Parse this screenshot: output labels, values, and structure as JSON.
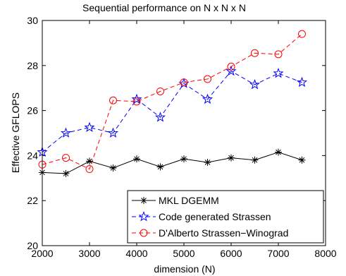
{
  "chart_data": {
    "type": "line",
    "title": "Sequential performance on N x N x N",
    "xlabel": "dimension (N)",
    "ylabel": "Effective GFLOPS",
    "xlim": [
      2000,
      8000
    ],
    "ylim": [
      20,
      30
    ],
    "xticks": [
      2000,
      3000,
      4000,
      5000,
      6000,
      7000,
      8000
    ],
    "yticks": [
      20,
      22,
      24,
      26,
      28,
      30
    ],
    "grid": false,
    "legend_position": "bottom-right",
    "x": [
      2000,
      2500,
      3000,
      3500,
      4000,
      4500,
      5000,
      5500,
      6000,
      6500,
      7000,
      7500
    ],
    "series": [
      {
        "name": "MKL DGEMM",
        "color": "#000000",
        "line_style": "solid",
        "marker": "asterisk",
        "values": [
          23.25,
          23.2,
          23.75,
          23.45,
          23.85,
          23.5,
          23.85,
          23.7,
          23.9,
          23.8,
          24.15,
          23.8
        ]
      },
      {
        "name": "Code generated Strassen",
        "color": "#0000ff",
        "line_style": "dashed",
        "marker": "pentagram",
        "values": [
          24.15,
          25.0,
          25.25,
          25.0,
          26.5,
          25.7,
          27.2,
          26.5,
          27.75,
          27.15,
          27.65,
          27.25
        ]
      },
      {
        "name": "D'Alberto Strassen−Winograd",
        "color": "#ff0000",
        "line_style": "dashed",
        "marker": "circle",
        "values": [
          23.6,
          23.9,
          23.4,
          26.45,
          26.4,
          26.85,
          27.25,
          27.4,
          27.95,
          28.55,
          28.5,
          29.4
        ]
      }
    ]
  }
}
